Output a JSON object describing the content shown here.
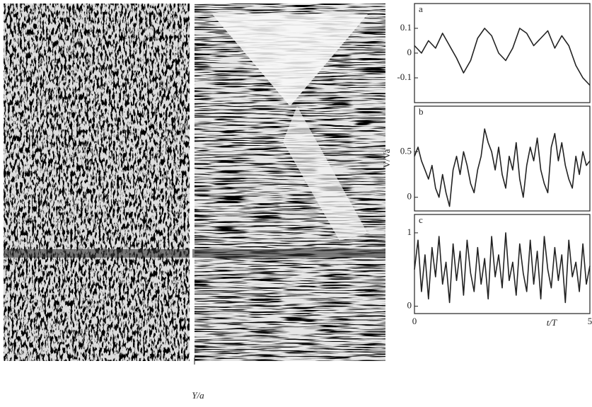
{
  "chart_data": [
    {
      "type": "line",
      "title": "a",
      "color": "#222222",
      "x": [
        0,
        0.2,
        0.4,
        0.6,
        0.8,
        1,
        1.2,
        1.4,
        1.6,
        1.8,
        2,
        2.2,
        2.4,
        2.6,
        2.8,
        3,
        3.2,
        3.4,
        3.6,
        3.8,
        4,
        4.2,
        4.4,
        4.6,
        4.8,
        5
      ],
      "values": [
        0.03,
        0,
        0.05,
        0.02,
        0.08,
        0.03,
        -0.02,
        -0.08,
        -0.03,
        0.06,
        0.1,
        0.07,
        0,
        -0.03,
        0.02,
        0.1,
        0.08,
        0.03,
        0.06,
        0.09,
        0.02,
        0.07,
        0.03,
        -0.05,
        -0.1,
        -0.13
      ],
      "xlim": [
        0,
        5
      ],
      "ylim": [
        -0.2,
        0.2
      ],
      "yticks": [
        0.1,
        0,
        -0.1
      ]
    },
    {
      "type": "line",
      "title": "b",
      "color": "#222222",
      "ylabel": "V/Va",
      "x": [
        0,
        0.1,
        0.2,
        0.3,
        0.4,
        0.5,
        0.6,
        0.7,
        0.8,
        0.9,
        1,
        1.1,
        1.2,
        1.3,
        1.4,
        1.5,
        1.6,
        1.7,
        1.8,
        1.9,
        2,
        2.1,
        2.2,
        2.3,
        2.4,
        2.5,
        2.6,
        2.7,
        2.8,
        2.9,
        3,
        3.1,
        3.2,
        3.3,
        3.4,
        3.5,
        3.6,
        3.7,
        3.8,
        3.9,
        4,
        4.1,
        4.2,
        4.3,
        4.4,
        4.5,
        4.6,
        4.7,
        4.8,
        4.9,
        5
      ],
      "values": [
        0.45,
        0.55,
        0.4,
        0.3,
        0.2,
        0.35,
        0.1,
        0,
        0.25,
        0.05,
        -0.1,
        0.3,
        0.45,
        0.25,
        0.5,
        0.35,
        0.15,
        0.05,
        0.3,
        0.45,
        0.75,
        0.6,
        0.5,
        0.3,
        0.55,
        0.25,
        0.1,
        0.45,
        0.3,
        0.6,
        0.2,
        0,
        0.35,
        0.55,
        0.4,
        0.65,
        0.3,
        0.15,
        0.05,
        0.55,
        0.7,
        0.4,
        0.6,
        0.35,
        0.2,
        0.1,
        0.45,
        0.25,
        0.5,
        0.35,
        0.4
      ],
      "xlim": [
        0,
        5
      ],
      "ylim": [
        -0.15,
        1
      ],
      "yticks": [
        0.5,
        0
      ]
    },
    {
      "type": "line",
      "title": "c",
      "color": "#222222",
      "xlabel": "t/T",
      "x": [
        0,
        0.1,
        0.2,
        0.3,
        0.4,
        0.5,
        0.6,
        0.7,
        0.8,
        0.9,
        1,
        1.1,
        1.2,
        1.3,
        1.4,
        1.5,
        1.6,
        1.7,
        1.8,
        1.9,
        2,
        2.1,
        2.2,
        2.3,
        2.4,
        2.5,
        2.6,
        2.7,
        2.8,
        2.9,
        3,
        3.1,
        3.2,
        3.3,
        3.4,
        3.5,
        3.6,
        3.7,
        3.8,
        3.9,
        4,
        4.1,
        4.2,
        4.3,
        4.4,
        4.5,
        4.6,
        4.7,
        4.8,
        4.9,
        5
      ],
      "values": [
        0.5,
        0.9,
        0.2,
        0.7,
        0.1,
        0.8,
        0.4,
        0.95,
        0.3,
        0.6,
        0.05,
        0.85,
        0.35,
        0.75,
        0.15,
        0.9,
        0.45,
        0.2,
        0.8,
        0.3,
        0.65,
        0.1,
        0.95,
        0.4,
        0.7,
        0.25,
        1,
        0.35,
        0.6,
        0.15,
        0.85,
        0.45,
        0.2,
        0.9,
        0.3,
        0.75,
        0.1,
        0.95,
        0.5,
        0.25,
        0.8,
        0.35,
        0.7,
        0.05,
        0.9,
        0.4,
        0.6,
        0.2,
        0.85,
        0.3,
        0.55
      ],
      "xlim": [
        0,
        5
      ],
      "ylim": [
        -0.1,
        1.25
      ],
      "yticks": [
        1,
        0
      ],
      "xticks": [
        0,
        5
      ]
    }
  ],
  "image_axis_label": "Y/a"
}
